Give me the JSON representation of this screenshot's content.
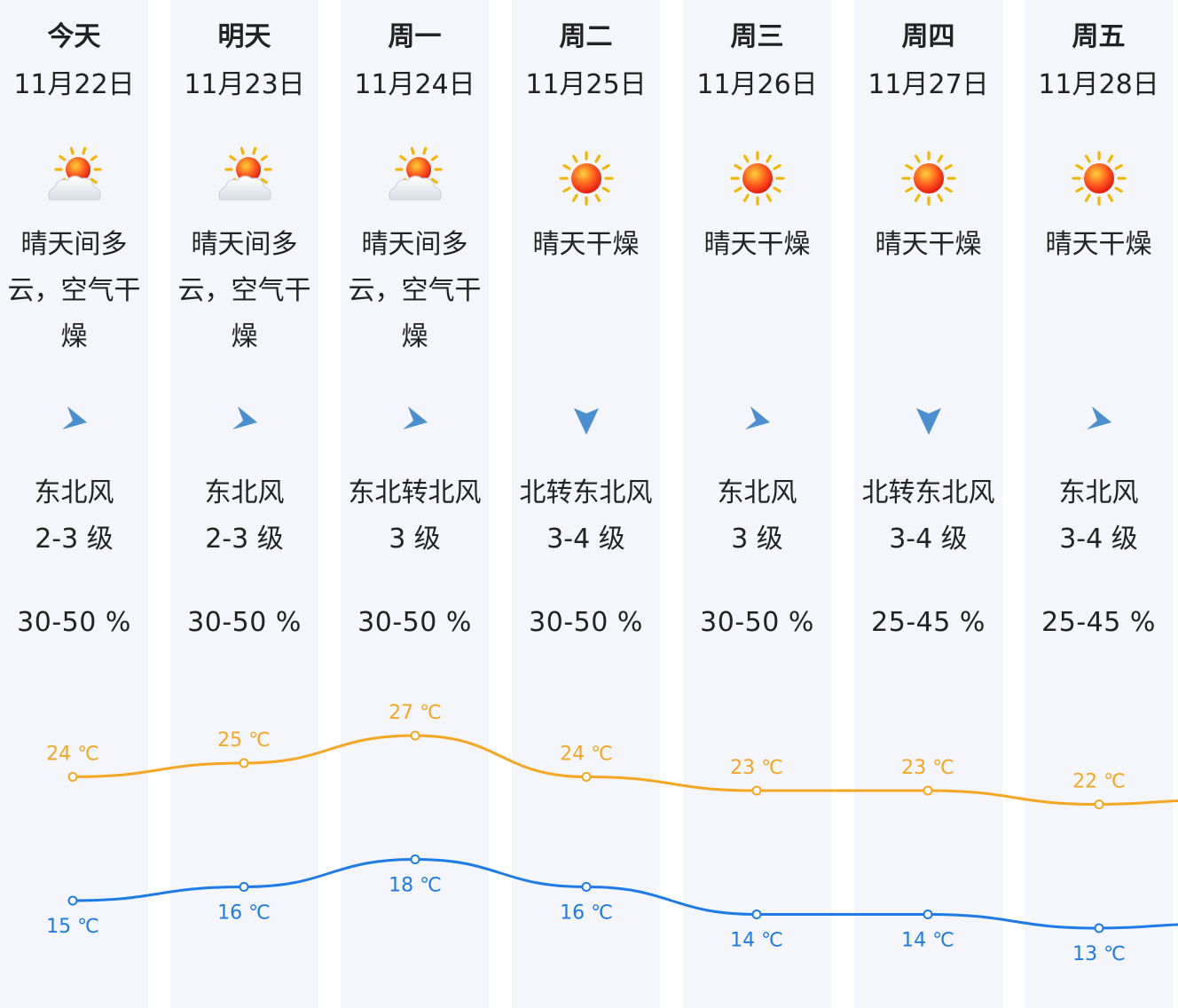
{
  "days": [
    {
      "day": "今天",
      "date": "11月22日",
      "icon": "sun-cloud-icon",
      "desc": "晴天间多云，空气干燥",
      "arrow_icon": "wind-northeast-arrow-icon",
      "wind_dir": "东北风",
      "wind_level": "2-3 级",
      "humidity": "30-50 %",
      "high": "24 ℃",
      "low": "15 ℃"
    },
    {
      "day": "明天",
      "date": "11月23日",
      "icon": "sun-cloud-icon",
      "desc": "晴天间多云，空气干燥",
      "arrow_icon": "wind-northeast-arrow-icon",
      "wind_dir": "东北风",
      "wind_level": "2-3 级",
      "humidity": "30-50 %",
      "high": "25 ℃",
      "low": "16 ℃"
    },
    {
      "day": "周一",
      "date": "11月24日",
      "icon": "sun-cloud-icon",
      "desc": "晴天间多云，空气干燥",
      "arrow_icon": "wind-northeast-arrow-icon",
      "wind_dir": "东北转北风",
      "wind_level": "3 级",
      "humidity": "30-50 %",
      "high": "27 ℃",
      "low": "18 ℃"
    },
    {
      "day": "周二",
      "date": "11月25日",
      "icon": "sun-icon",
      "desc": "晴天干燥",
      "arrow_icon": "wind-north-arrow-icon",
      "wind_dir": "北转东北风",
      "wind_level": "3-4 级",
      "humidity": "30-50 %",
      "high": "24 ℃",
      "low": "16 ℃"
    },
    {
      "day": "周三",
      "date": "11月26日",
      "icon": "sun-icon",
      "desc": "晴天干燥",
      "arrow_icon": "wind-northeast-arrow-icon",
      "wind_dir": "东北风",
      "wind_level": "3 级",
      "humidity": "30-50 %",
      "high": "23 ℃",
      "low": "14 ℃"
    },
    {
      "day": "周四",
      "date": "11月27日",
      "icon": "sun-icon",
      "desc": "晴天干燥",
      "arrow_icon": "wind-north-arrow-icon",
      "wind_dir": "北转东北风",
      "wind_level": "3-4 级",
      "humidity": "25-45 %",
      "high": "23 ℃",
      "low": "14 ℃"
    },
    {
      "day": "周五",
      "date": "11月28日",
      "icon": "sun-icon",
      "desc": "晴天干燥",
      "arrow_icon": "wind-northeast-arrow-icon",
      "wind_dir": "东北风",
      "wind_level": "3-4 级",
      "humidity": "25-45 %",
      "high": "22 ℃",
      "low": "13 ℃"
    }
  ],
  "chart_data": {
    "type": "line",
    "categories": [
      "11月22日",
      "11月23日",
      "11月24日",
      "11月25日",
      "11月26日",
      "11月27日",
      "11月28日"
    ],
    "series": [
      {
        "values": [
          24,
          25,
          27,
          24,
          23,
          23,
          22
        ],
        "color": "#f5a623"
      },
      {
        "values": [
          15,
          16,
          18,
          16,
          14,
          14,
          13
        ],
        "color": "#1e7be6"
      }
    ]
  },
  "colors": {
    "high": "#f5a623",
    "low": "#1e7be6",
    "column_bg": "#f4f6fb",
    "arrow": "#4a8fd0"
  }
}
